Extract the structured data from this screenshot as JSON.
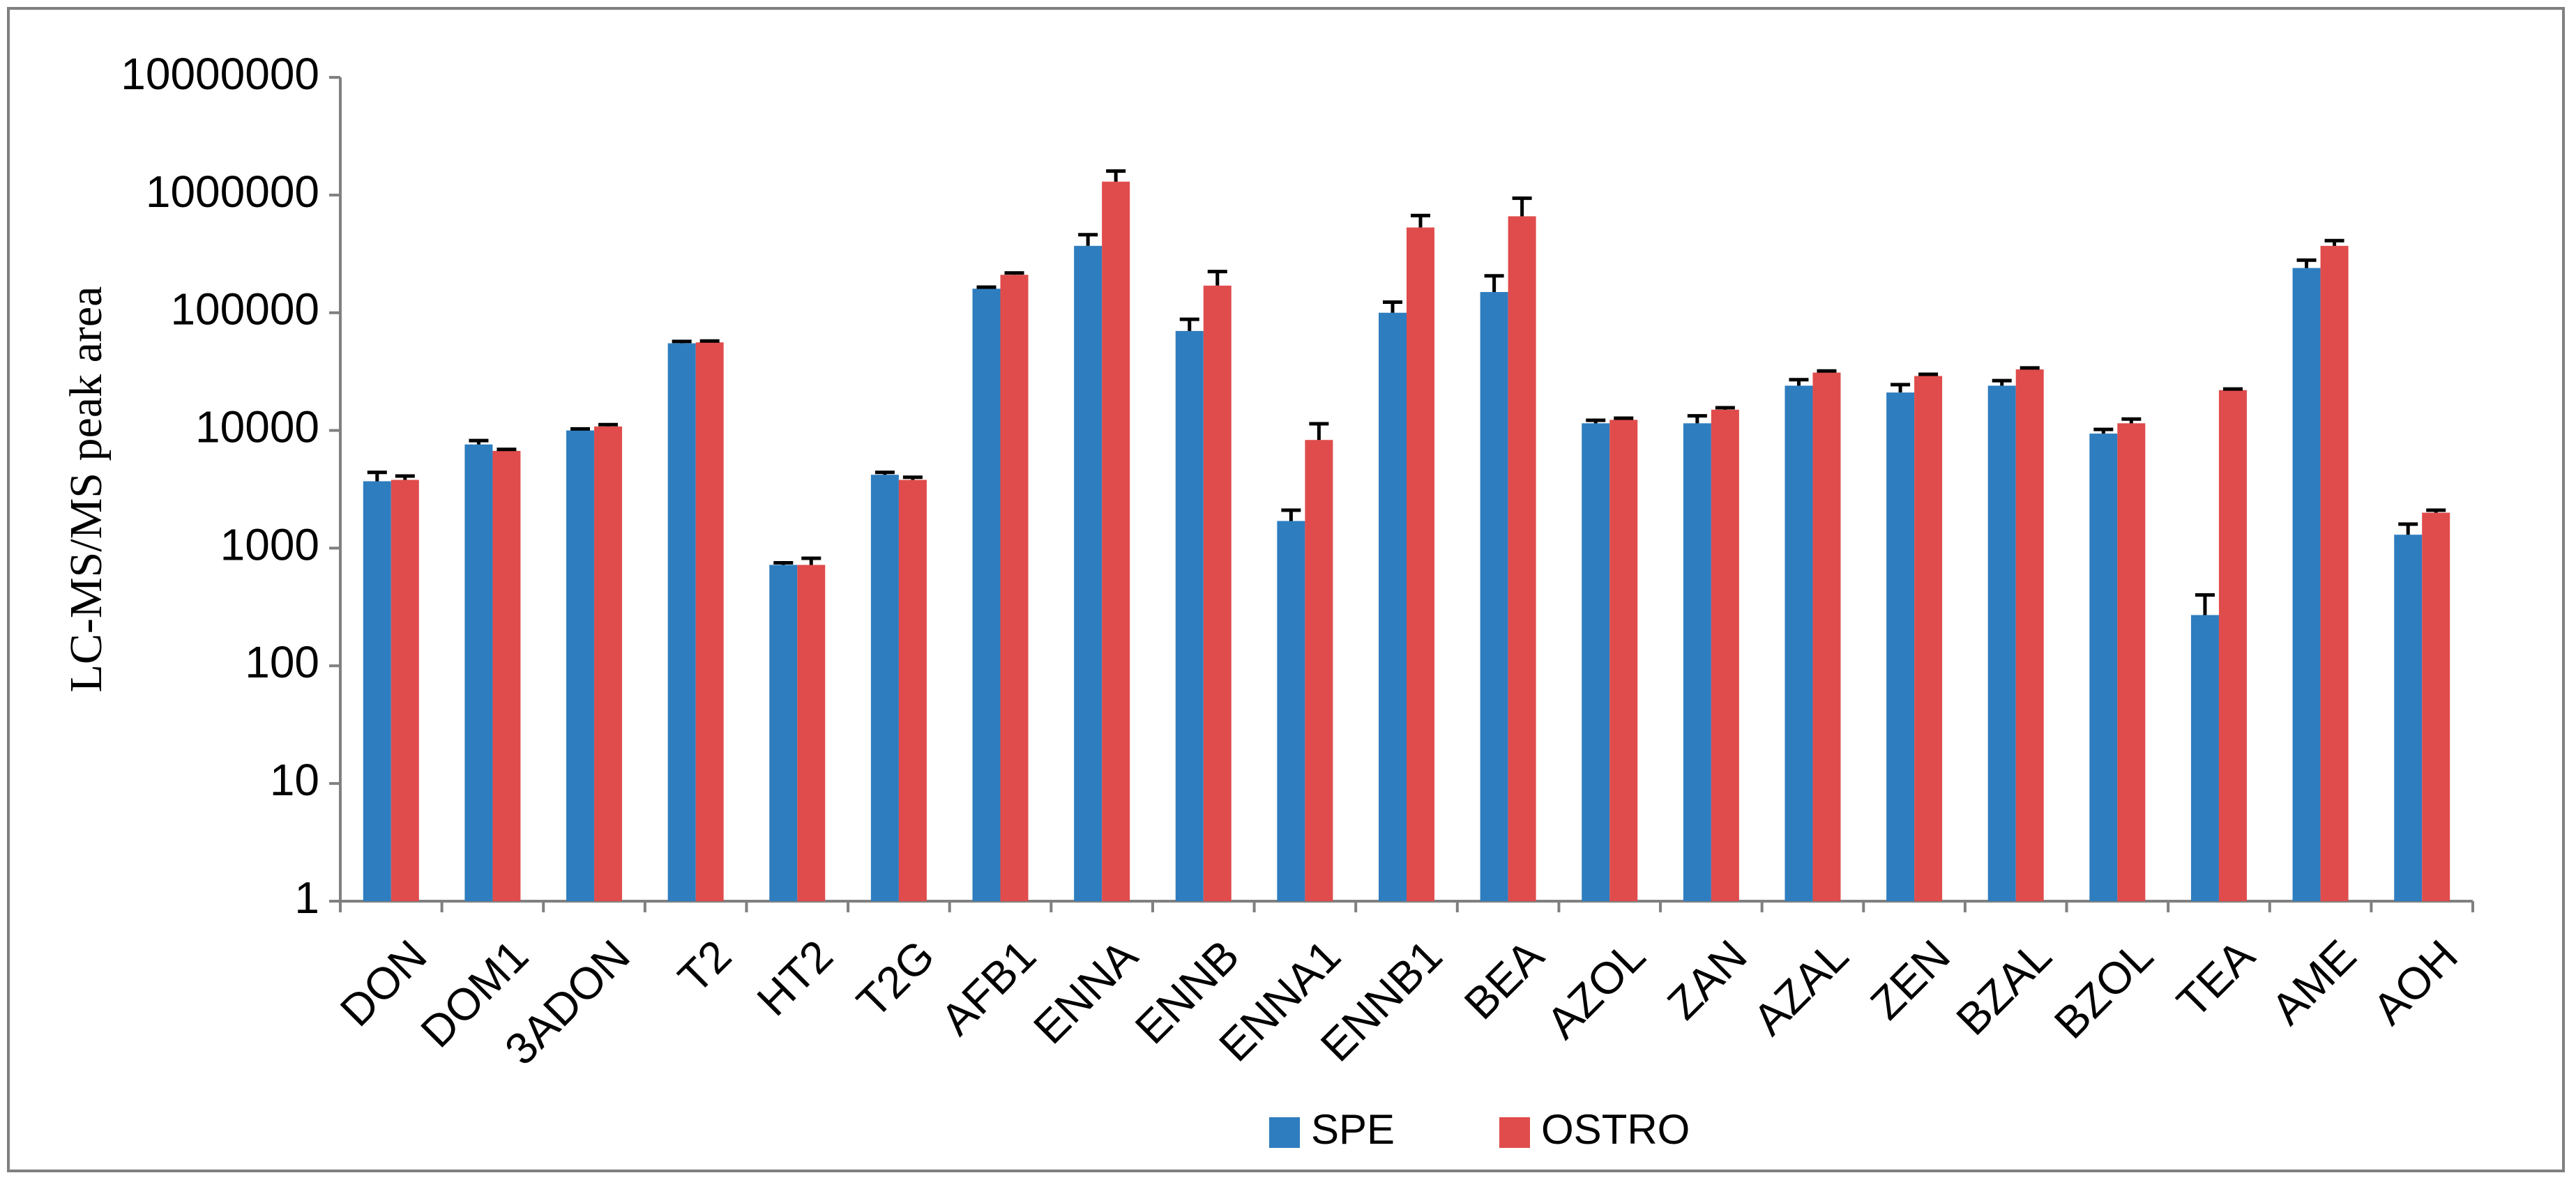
{
  "chart_data": {
    "type": "bar",
    "ylabel": "LC-MS/MS peak area",
    "categories": [
      "DON",
      "DOM1",
      "3ADON",
      "T2",
      "HT2",
      "T2G",
      "AFB1",
      "ENNA",
      "ENNB",
      "ENNA1",
      "ENNB1",
      "BEA",
      "AZOL",
      "ZAN",
      "AZAL",
      "ZEN",
      "BZAL",
      "BZOL",
      "TEA",
      "AME",
      "AOH"
    ],
    "series": [
      {
        "name": "SPE",
        "color": "#2e7ebf",
        "values": [
          3700,
          7600,
          10000,
          55000,
          720,
          4200,
          160000,
          370000,
          70000,
          1700,
          100000,
          150000,
          11500,
          11500,
          24000,
          21000,
          24000,
          9400,
          270,
          240000,
          1300
        ],
        "errors": [
          700,
          600,
          300,
          2000,
          30,
          200,
          5000,
          90000,
          18000,
          400,
          23000,
          56000,
          700,
          1800,
          3000,
          3500,
          2500,
          800,
          130,
          40000,
          300
        ]
      },
      {
        "name": "OSTRO",
        "color": "#e04b4b",
        "values": [
          3800,
          6700,
          10800,
          56000,
          720,
          3800,
          210000,
          1300000,
          170000,
          8300,
          530000,
          660000,
          12300,
          15000,
          31000,
          29000,
          33000,
          11500,
          22000,
          370000,
          2000
        ],
        "errors": [
          300,
          200,
          400,
          1500,
          100,
          200,
          8000,
          300000,
          54000,
          3100,
          140000,
          280000,
          400,
          600,
          1000,
          1000,
          1000,
          1000,
          500,
          40000,
          100
        ]
      }
    ],
    "log_y": true,
    "ylim": [
      1,
      10000000
    ],
    "yticks": [
      1,
      10,
      100,
      1000,
      10000,
      100000,
      1000000,
      10000000
    ],
    "grid": false,
    "legend": "bottom"
  }
}
